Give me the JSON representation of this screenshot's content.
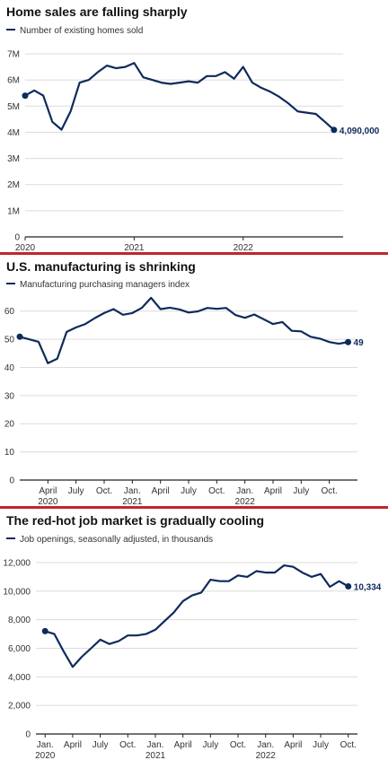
{
  "colors": {
    "line": "#0f2a5c",
    "grid": "#dcdcdc",
    "axis": "#222222",
    "divider": "#c0262d"
  },
  "chart_data": [
    {
      "type": "line",
      "title": "Home sales are falling sharply",
      "legend": "Number of existing homes sold",
      "end_label": "4,090,000",
      "ylim": [
        0,
        7000000
      ],
      "yticks": [
        0,
        1000000,
        2000000,
        3000000,
        4000000,
        5000000,
        6000000,
        7000000
      ],
      "ytick_labels": [
        "0",
        "1M",
        "2M",
        "3M",
        "4M",
        "5M",
        "6M",
        "7M"
      ],
      "xlim": [
        0,
        35
      ],
      "xtick_labels": [
        {
          "x": 0,
          "label": "2020",
          "sub": ""
        },
        {
          "x": 12,
          "label": "2021",
          "sub": ""
        },
        {
          "x": 24,
          "label": "2022",
          "sub": ""
        }
      ],
      "x": [
        0,
        1,
        2,
        3,
        4,
        5,
        6,
        7,
        8,
        9,
        10,
        11,
        12,
        13,
        14,
        15,
        16,
        17,
        18,
        19,
        20,
        21,
        22,
        23,
        24,
        25,
        26,
        27,
        28,
        29,
        30,
        31,
        32,
        33,
        34
      ],
      "values": [
        5400000,
        5600000,
        5400000,
        4400000,
        4100000,
        4800000,
        5900000,
        6000000,
        6300000,
        6550000,
        6450000,
        6500000,
        6650000,
        6100000,
        6000000,
        5900000,
        5850000,
        5900000,
        5950000,
        5900000,
        6150000,
        6150000,
        6300000,
        6050000,
        6500000,
        5900000,
        5700000,
        5550000,
        5350000,
        5100000,
        4800000,
        4750000,
        4700000,
        4400000,
        4090000
      ]
    },
    {
      "type": "line",
      "title": "U.S. manufacturing is shrinking",
      "legend": "Manufacturing purchasing managers index",
      "end_label": "49",
      "ylim": [
        0,
        65
      ],
      "yticks": [
        0,
        10,
        20,
        30,
        40,
        50,
        60
      ],
      "ytick_labels": [
        "0",
        "10",
        "20",
        "30",
        "40",
        "50",
        "60"
      ],
      "xlim": [
        0,
        36
      ],
      "xtick_labels": [
        {
          "x": 3,
          "label": "April",
          "sub": "2020"
        },
        {
          "x": 6,
          "label": "July",
          "sub": ""
        },
        {
          "x": 9,
          "label": "Oct.",
          "sub": ""
        },
        {
          "x": 12,
          "label": "Jan.",
          "sub": "2021"
        },
        {
          "x": 15,
          "label": "April",
          "sub": ""
        },
        {
          "x": 18,
          "label": "July",
          "sub": ""
        },
        {
          "x": 21,
          "label": "Oct.",
          "sub": ""
        },
        {
          "x": 24,
          "label": "Jan.",
          "sub": "2022"
        },
        {
          "x": 27,
          "label": "April",
          "sub": ""
        },
        {
          "x": 30,
          "label": "July",
          "sub": ""
        },
        {
          "x": 33,
          "label": "Oct.",
          "sub": ""
        }
      ],
      "x": [
        0,
        2,
        3,
        4,
        5,
        6,
        7,
        8,
        9,
        10,
        11,
        12,
        13,
        14,
        15,
        16,
        17,
        18,
        19,
        20,
        21,
        22,
        23,
        24,
        25,
        26,
        27,
        28,
        29,
        30,
        31,
        32,
        33,
        34,
        35
      ],
      "values": [
        50.9,
        49.1,
        41.5,
        43.1,
        52.6,
        54.2,
        55.4,
        57.5,
        59.3,
        60.7,
        58.7,
        59.3,
        61.1,
        64.7,
        60.7,
        61.2,
        60.6,
        59.5,
        59.9,
        61.1,
        60.8,
        61.1,
        58.6,
        57.6,
        58.8,
        57.1,
        55.4,
        56.1,
        53,
        52.8,
        50.9,
        50.2,
        49,
        48.4,
        49
      ],
      "x_fix": "values aligned to months Jan 2020 - Dec 2022"
    },
    {
      "type": "line",
      "title": "The red-hot job market is gradually cooling",
      "legend": "Job openings, seasonally adjusted, in thousands",
      "end_label": "10,334",
      "ylim": [
        0,
        12500
      ],
      "yticks": [
        0,
        2000,
        4000,
        6000,
        8000,
        10000,
        12000
      ],
      "ytick_labels": [
        "0",
        "2,000",
        "4,000",
        "6,000",
        "8,000",
        "10,000",
        "12,000"
      ],
      "xlim": [
        -1,
        34
      ],
      "xtick_labels": [
        {
          "x": 0,
          "label": "Jan.",
          "sub": "2020"
        },
        {
          "x": 3,
          "label": "April",
          "sub": ""
        },
        {
          "x": 6,
          "label": "July",
          "sub": ""
        },
        {
          "x": 9,
          "label": "Oct.",
          "sub": ""
        },
        {
          "x": 12,
          "label": "Jan.",
          "sub": "2021"
        },
        {
          "x": 15,
          "label": "April",
          "sub": ""
        },
        {
          "x": 18,
          "label": "July",
          "sub": ""
        },
        {
          "x": 21,
          "label": "Oct.",
          "sub": ""
        },
        {
          "x": 24,
          "label": "Jan.",
          "sub": "2022"
        },
        {
          "x": 27,
          "label": "April",
          "sub": ""
        },
        {
          "x": 30,
          "label": "July",
          "sub": ""
        },
        {
          "x": 33,
          "label": "Oct.",
          "sub": ""
        }
      ],
      "x": [
        0,
        1,
        2,
        3,
        4,
        5,
        6,
        7,
        8,
        9,
        10,
        11,
        12,
        13,
        14,
        15,
        16,
        17,
        18,
        19,
        20,
        21,
        22,
        23,
        24,
        25,
        26,
        27,
        28,
        29,
        30,
        31,
        32,
        33
      ],
      "values": [
        7200,
        7000,
        5800,
        4700,
        5400,
        6000,
        6600,
        6300,
        6500,
        6900,
        6900,
        7000,
        7300,
        7900,
        8500,
        9300,
        9700,
        9900,
        10800,
        10700,
        10700,
        11100,
        11000,
        11400,
        11300,
        11300,
        11800,
        11700,
        11300,
        11000,
        11200,
        10300,
        10700,
        10334
      ]
    }
  ]
}
